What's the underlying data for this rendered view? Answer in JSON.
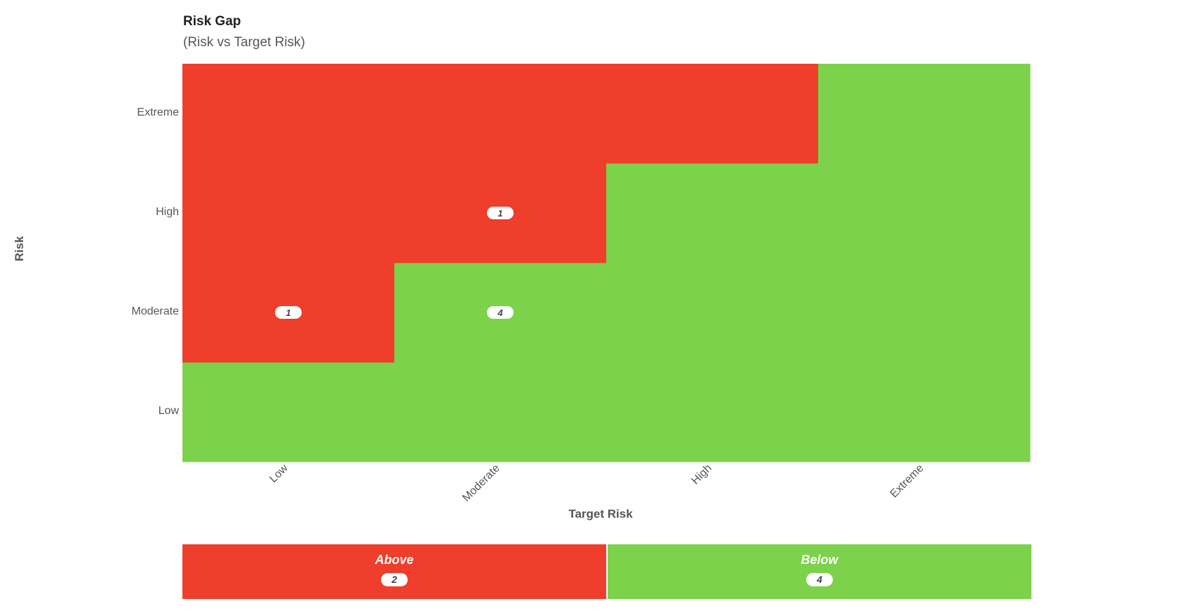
{
  "colors": {
    "above": "#ef3e2b",
    "below": "#7cd24a",
    "pill_bg": "#ffffff",
    "pill_text": "#444444",
    "tick_text": "#555555"
  },
  "chart_data": {
    "type": "heatmap",
    "title": "Risk Gap",
    "subtitle": "(Risk vs Target Risk)",
    "xlabel": "Target Risk",
    "ylabel": "Risk",
    "x_categories": [
      "Low",
      "Moderate",
      "High",
      "Extreme"
    ],
    "y_categories": [
      "Low",
      "Moderate",
      "High",
      "Extreme"
    ],
    "status_matrix": [
      [
        "below",
        "below",
        "below",
        "below"
      ],
      [
        "above",
        "below",
        "below",
        "below"
      ],
      [
        "above",
        "above",
        "below",
        "below"
      ],
      [
        "above",
        "above",
        "above",
        "below"
      ]
    ],
    "counts": [
      {
        "x": "Low",
        "y": "Moderate",
        "value": 1
      },
      {
        "x": "Moderate",
        "y": "Moderate",
        "value": 4
      },
      {
        "x": "Moderate",
        "y": "High",
        "value": 1
      }
    ]
  },
  "summary": {
    "above": {
      "label": "Above",
      "count": "2"
    },
    "below": {
      "label": "Below",
      "count": "4"
    }
  }
}
